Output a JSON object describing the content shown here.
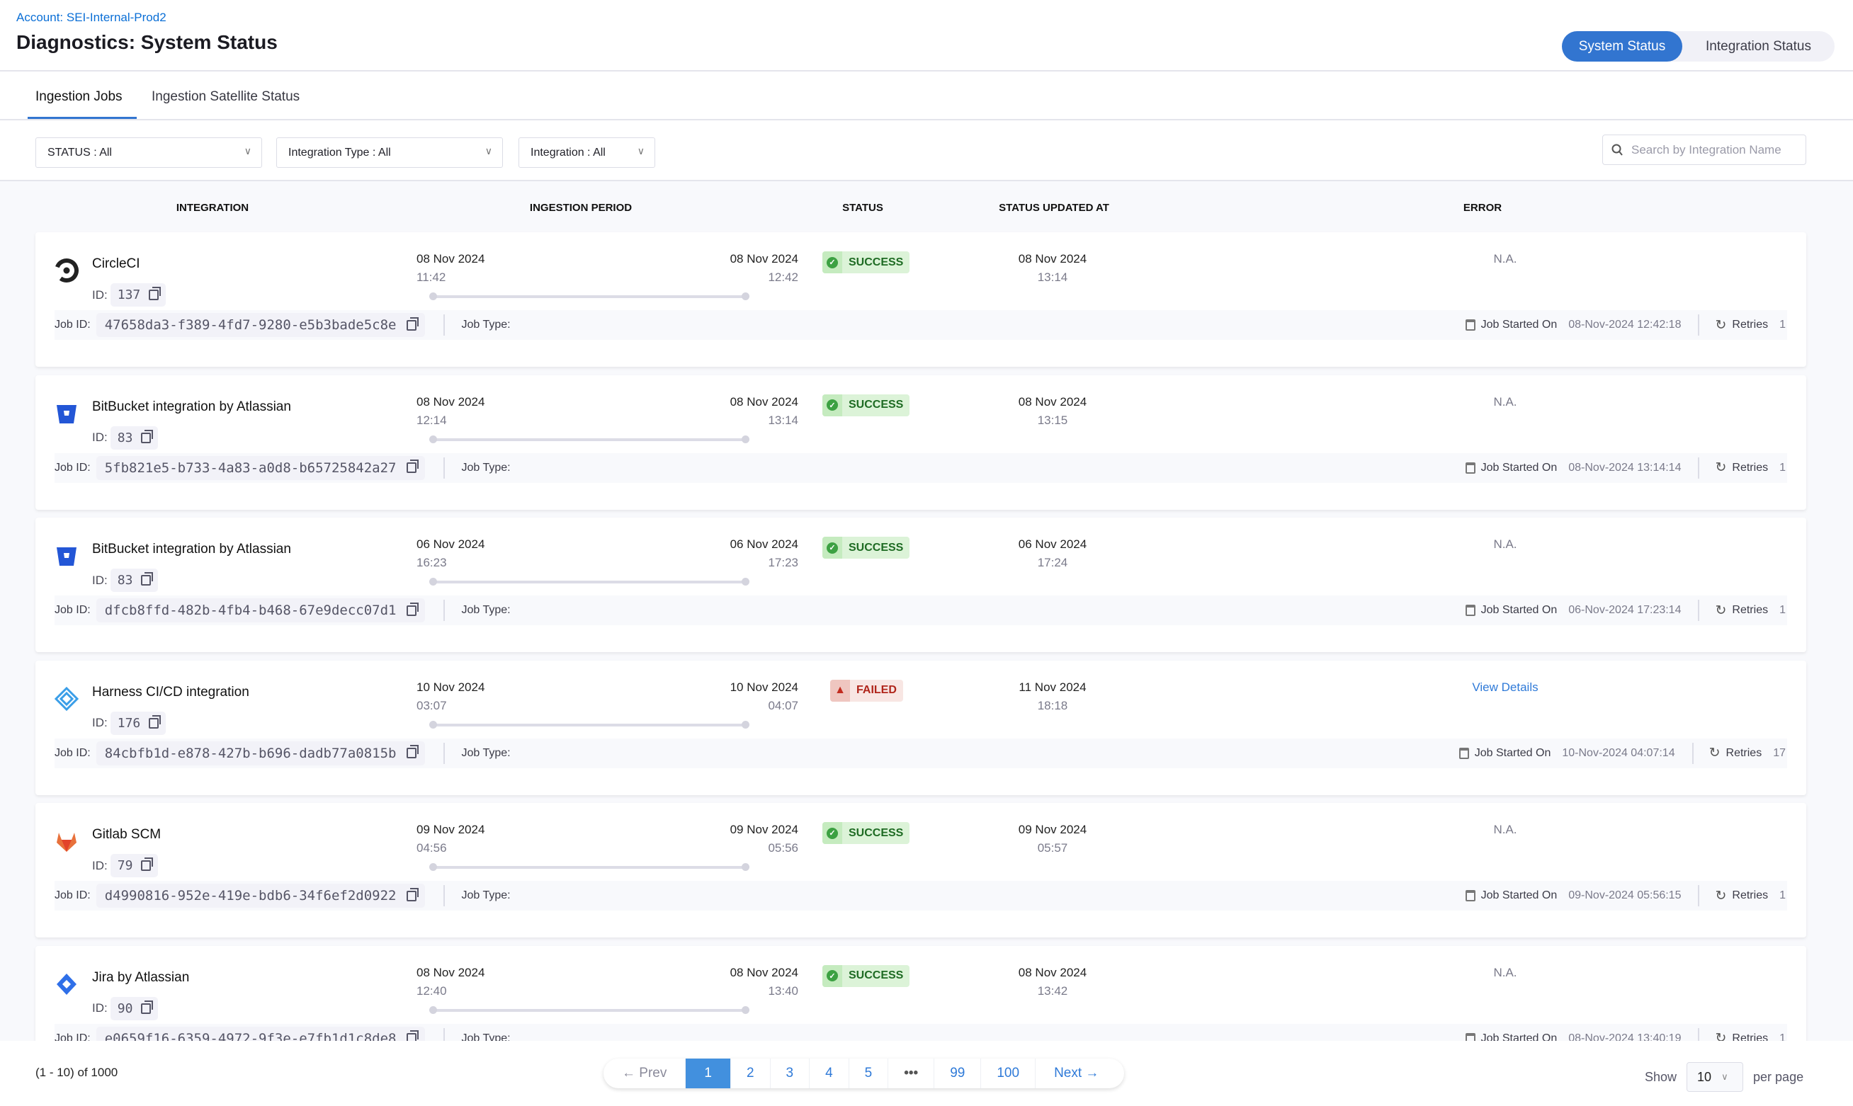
{
  "header": {
    "account": "Account: SEI-Internal-Prod2",
    "title": "Diagnostics: System Status",
    "toggle": [
      {
        "label": "System Status",
        "active": true
      },
      {
        "label": "Integration Status",
        "active": false
      }
    ]
  },
  "tabs": [
    {
      "label": "Ingestion Jobs",
      "active": true
    },
    {
      "label": "Ingestion Satellite Status",
      "active": false
    }
  ],
  "filters": {
    "status": "STATUS : All",
    "integration_type": "Integration Type : All",
    "integration": "Integration : All",
    "search_placeholder": "Search by Integration Name"
  },
  "columns": {
    "integration": "INTEGRATION",
    "period": "INGESTION PERIOD",
    "status": "STATUS",
    "updated": "STATUS UPDATED AT",
    "error": "ERROR"
  },
  "labels": {
    "id": "ID:",
    "job_id": "Job ID:",
    "job_type": "Job Type:",
    "job_started": "Job Started On",
    "retries": "Retries"
  },
  "colors": {
    "accent": "#3275d0",
    "success": "#3ca142",
    "failed": "#c22c1f"
  },
  "rows": [
    {
      "icon": "circleci-icon",
      "name": "CircleCI",
      "id": "137",
      "start_date": "08 Nov 2024",
      "start_time": "11:42",
      "end_date": "08 Nov 2024",
      "end_time": "12:42",
      "status": "SUCCESS",
      "updated_date": "08 Nov 2024",
      "updated_time": "13:14",
      "error": "N.A.",
      "job_id": "47658da3-f389-4fd7-9280-e5b3bade5c8e",
      "job_type": "",
      "started": "08-Nov-2024 12:42:18",
      "retries": "1"
    },
    {
      "icon": "bitbucket-icon",
      "name": "BitBucket integration by Atlassian",
      "id": "83",
      "start_date": "08 Nov 2024",
      "start_time": "12:14",
      "end_date": "08 Nov 2024",
      "end_time": "13:14",
      "status": "SUCCESS",
      "updated_date": "08 Nov 2024",
      "updated_time": "13:15",
      "error": "N.A.",
      "job_id": "5fb821e5-b733-4a83-a0d8-b65725842a27",
      "job_type": "",
      "started": "08-Nov-2024 13:14:14",
      "retries": "1"
    },
    {
      "icon": "bitbucket-icon",
      "name": "BitBucket integration by Atlassian",
      "id": "83",
      "start_date": "06 Nov 2024",
      "start_time": "16:23",
      "end_date": "06 Nov 2024",
      "end_time": "17:23",
      "status": "SUCCESS",
      "updated_date": "06 Nov 2024",
      "updated_time": "17:24",
      "error": "N.A.",
      "job_id": "dfcb8ffd-482b-4fb4-b468-67e9decc07d1",
      "job_type": "",
      "started": "06-Nov-2024 17:23:14",
      "retries": "1"
    },
    {
      "icon": "harness-icon",
      "name": "Harness CI/CD integration",
      "id": "176",
      "start_date": "10 Nov 2024",
      "start_time": "03:07",
      "end_date": "10 Nov 2024",
      "end_time": "04:07",
      "status": "FAILED",
      "updated_date": "11 Nov 2024",
      "updated_time": "18:18",
      "error": "View Details",
      "job_id": "84cbfb1d-e878-427b-b696-dadb77a0815b",
      "job_type": "",
      "started": "10-Nov-2024 04:07:14",
      "retries": "17"
    },
    {
      "icon": "gitlab-icon",
      "name": "Gitlab SCM",
      "id": "79",
      "start_date": "09 Nov 2024",
      "start_time": "04:56",
      "end_date": "09 Nov 2024",
      "end_time": "05:56",
      "status": "SUCCESS",
      "updated_date": "09 Nov 2024",
      "updated_time": "05:57",
      "error": "N.A.",
      "job_id": "d4990816-952e-419e-bdb6-34f6ef2d0922",
      "job_type": "",
      "started": "09-Nov-2024 05:56:15",
      "retries": "1"
    },
    {
      "icon": "jira-icon",
      "name": "Jira by Atlassian",
      "id": "90",
      "start_date": "08 Nov 2024",
      "start_time": "12:40",
      "end_date": "08 Nov 2024",
      "end_time": "13:40",
      "status": "SUCCESS",
      "updated_date": "08 Nov 2024",
      "updated_time": "13:42",
      "error": "N.A.",
      "job_id": "e0659f16-6359-4972-9f3e-e7fb1d1c8de8",
      "job_type": "",
      "started": "08-Nov-2024 13:40:19",
      "retries": "1"
    }
  ],
  "pagination": {
    "range": "(1 - 10) of 1000",
    "prev": "← Prev",
    "pages": [
      "1",
      "2",
      "3",
      "4",
      "5",
      "•••",
      "99",
      "100"
    ],
    "current": "1",
    "next": "Next →",
    "show": "Show",
    "per_page_value": "10",
    "per_page": "per page"
  }
}
